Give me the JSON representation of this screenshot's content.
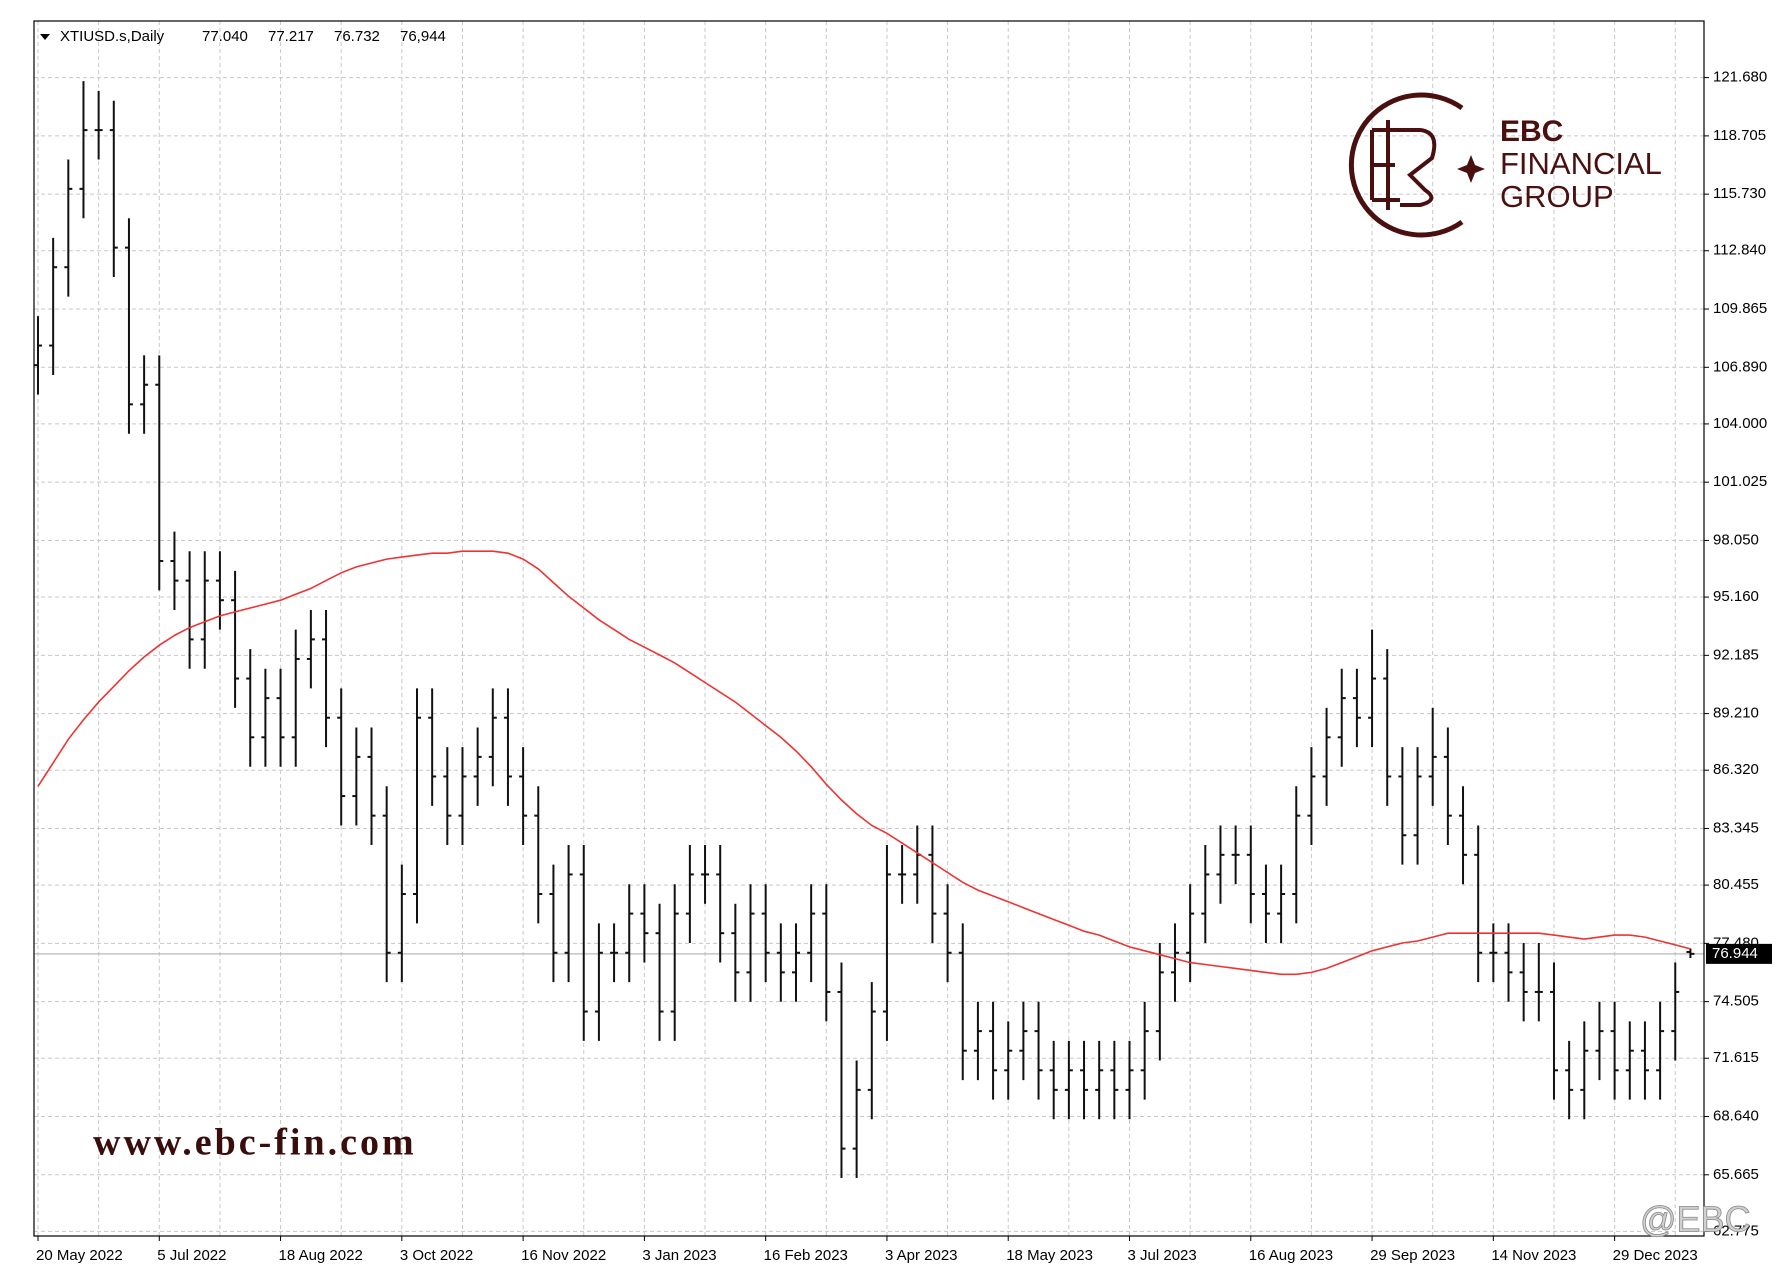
{
  "chart_data": {
    "type": "ohlc",
    "header": {
      "symbol": "XTIUSD.s,Daily",
      "quote": [
        {
          "value": 77.04,
          "label": "77.040"
        },
        {
          "value": 77.217,
          "label": "77.217"
        },
        {
          "value": 76.732,
          "label": "76.732"
        },
        {
          "value": 76.944,
          "label": "76,944"
        }
      ]
    },
    "categories": [
      "20 May 2022",
      null,
      null,
      null,
      null,
      null,
      null,
      null,
      "5 Jul 2022",
      null,
      null,
      null,
      null,
      null,
      null,
      null,
      "18 Aug 2022",
      null,
      null,
      null,
      null,
      null,
      null,
      null,
      "3 Oct 2022",
      null,
      null,
      null,
      null,
      null,
      null,
      null,
      "16 Nov 2022",
      null,
      null,
      null,
      null,
      null,
      null,
      null,
      "3 Jan 2023",
      null,
      null,
      null,
      null,
      null,
      null,
      null,
      "16 Feb 2023",
      null,
      null,
      null,
      null,
      null,
      null,
      null,
      "3 Apr 2023",
      null,
      null,
      null,
      null,
      null,
      null,
      null,
      "18 May 2023",
      null,
      null,
      null,
      null,
      null,
      null,
      null,
      "3 Jul 2023",
      null,
      null,
      null,
      null,
      null,
      null,
      null,
      "16 Aug 2023",
      null,
      null,
      null,
      null,
      null,
      null,
      null,
      "29 Sep 2023",
      null,
      null,
      null,
      null,
      null,
      null,
      null,
      "14 Nov 2023",
      null,
      null,
      null,
      null,
      null,
      null,
      null,
      "29 Dec 2023",
      null,
      null,
      null,
      null,
      null
    ],
    "ohlc": {
      "color": "#111111",
      "open": [
        107,
        108,
        112,
        116,
        119,
        119,
        113,
        105,
        106,
        97,
        96,
        93,
        96,
        95,
        91,
        88,
        90,
        88,
        92,
        93,
        89,
        85,
        87,
        84,
        77,
        80,
        89,
        86,
        84,
        86,
        87,
        89,
        86,
        84,
        80,
        77,
        81,
        74,
        77,
        77,
        79,
        78,
        74,
        79,
        81,
        81,
        78,
        76,
        79,
        77,
        76,
        77,
        79,
        75,
        67,
        70,
        74,
        81,
        81,
        82,
        79,
        77,
        72,
        73,
        71,
        72,
        73,
        71,
        70,
        71,
        70,
        71,
        70,
        71,
        73,
        76,
        77,
        79,
        81,
        82,
        82,
        80,
        79,
        80,
        84,
        86,
        88,
        90,
        89,
        91,
        86,
        83,
        86,
        87,
        84,
        82,
        77,
        77,
        76,
        75,
        75,
        71,
        70,
        72,
        73,
        71,
        72,
        71,
        73,
        77.04
      ],
      "high": [
        109.5,
        113.5,
        117.5,
        121.5,
        121,
        120.5,
        114.5,
        107.5,
        107.5,
        98.5,
        97.5,
        97.5,
        97.5,
        96.5,
        92.5,
        91.5,
        91.5,
        93.5,
        94.5,
        94.5,
        90.5,
        88.5,
        88.5,
        85.5,
        81.5,
        90.5,
        90.5,
        87.5,
        87.5,
        88.5,
        90.5,
        90.5,
        87.5,
        85.5,
        81.5,
        82.5,
        82.5,
        78.5,
        78.5,
        80.5,
        80.5,
        79.5,
        80.5,
        82.5,
        82.5,
        82.5,
        79.5,
        80.5,
        80.5,
        78.5,
        78.5,
        80.5,
        80.5,
        76.5,
        71.5,
        75.5,
        82.5,
        82.5,
        83.5,
        83.5,
        80.5,
        78.5,
        74.5,
        74.5,
        73.5,
        74.5,
        74.5,
        72.5,
        72.5,
        72.5,
        72.5,
        72.5,
        72.5,
        74.5,
        77.5,
        78.5,
        80.5,
        82.5,
        83.5,
        83.5,
        83.5,
        81.5,
        81.5,
        85.5,
        87.5,
        89.5,
        91.5,
        91.5,
        93.5,
        92.5,
        87.5,
        87.5,
        89.5,
        88.5,
        85.5,
        83.5,
        78.5,
        78.5,
        77.5,
        77.5,
        76.5,
        72.5,
        73.5,
        74.5,
        74.5,
        73.5,
        73.5,
        74.5,
        76.5,
        77.217
      ],
      "low": [
        105.5,
        106.5,
        110.5,
        114.5,
        117.5,
        111.5,
        103.5,
        103.5,
        95.5,
        94.5,
        91.5,
        91.5,
        93.5,
        89.5,
        86.5,
        86.5,
        86.5,
        86.5,
        90.5,
        87.5,
        83.5,
        83.5,
        82.5,
        75.5,
        75.5,
        78.5,
        84.5,
        82.5,
        82.5,
        84.5,
        85.5,
        84.5,
        82.5,
        78.5,
        75.5,
        75.5,
        72.5,
        72.5,
        75.5,
        75.5,
        76.5,
        72.5,
        72.5,
        77.5,
        79.5,
        76.5,
        74.5,
        74.5,
        75.5,
        74.5,
        74.5,
        75.5,
        73.5,
        65.5,
        65.5,
        68.5,
        72.5,
        79.5,
        79.5,
        77.5,
        75.5,
        70.5,
        70.5,
        69.5,
        69.5,
        70.5,
        69.5,
        68.5,
        68.5,
        68.5,
        68.5,
        68.5,
        68.5,
        69.5,
        71.5,
        74.5,
        75.5,
        77.5,
        79.5,
        80.5,
        78.5,
        77.5,
        77.5,
        78.5,
        82.5,
        84.5,
        86.5,
        87.5,
        87.5,
        84.5,
        81.5,
        81.5,
        84.5,
        82.5,
        80.5,
        75.5,
        75.5,
        74.5,
        73.5,
        73.5,
        69.5,
        68.5,
        68.5,
        70.5,
        69.5,
        69.5,
        69.5,
        69.5,
        71.5,
        76.732
      ],
      "close": [
        108,
        112,
        116,
        119,
        119,
        113,
        105,
        106,
        97,
        96,
        93,
        96,
        95,
        91,
        88,
        90,
        88,
        92,
        93,
        89,
        85,
        87,
        84,
        77,
        80,
        89,
        86,
        84,
        86,
        87,
        89,
        86,
        84,
        80,
        77,
        81,
        74,
        77,
        77,
        79,
        78,
        74,
        79,
        81,
        81,
        78,
        76,
        79,
        77,
        76,
        77,
        79,
        75,
        67,
        70,
        74,
        81,
        81,
        82,
        79,
        77,
        72,
        73,
        71,
        72,
        73,
        71,
        70,
        71,
        70,
        71,
        70,
        71,
        73,
        76,
        77,
        79,
        81,
        82,
        82,
        80,
        79,
        80,
        84,
        86,
        88,
        90,
        89,
        91,
        86,
        83,
        86,
        87,
        84,
        82,
        77,
        77,
        76,
        75,
        75,
        71,
        70,
        72,
        73,
        71,
        72,
        71,
        73,
        75,
        76.944
      ]
    },
    "moving_average": {
      "color": "#ee3333",
      "values": [
        85.5,
        86.7,
        87.9,
        88.9,
        89.8,
        90.6,
        91.4,
        92.1,
        92.7,
        93.2,
        93.6,
        93.9,
        94.2,
        94.4,
        94.6,
        94.8,
        95.0,
        95.3,
        95.6,
        96.0,
        96.4,
        96.7,
        96.9,
        97.1,
        97.2,
        97.3,
        97.4,
        97.4,
        97.5,
        97.5,
        97.5,
        97.4,
        97.1,
        96.6,
        95.9,
        95.2,
        94.6,
        94.0,
        93.5,
        93.0,
        92.6,
        92.2,
        91.8,
        91.3,
        90.8,
        90.3,
        89.8,
        89.2,
        88.6,
        88.0,
        87.3,
        86.5,
        85.6,
        84.8,
        84.1,
        83.5,
        83.1,
        82.6,
        82.1,
        81.6,
        81.1,
        80.6,
        80.2,
        79.9,
        79.6,
        79.3,
        79.0,
        78.7,
        78.4,
        78.1,
        77.9,
        77.6,
        77.3,
        77.1,
        76.9,
        76.7,
        76.5,
        76.4,
        76.3,
        76.2,
        76.1,
        76.0,
        75.9,
        75.9,
        76.0,
        76.2,
        76.5,
        76.8,
        77.1,
        77.3,
        77.5,
        77.6,
        77.8,
        78.0,
        78.0,
        78.0,
        78.0,
        78.0,
        78.0,
        78.0,
        77.9,
        77.8,
        77.7,
        77.8,
        77.9,
        77.9,
        77.8,
        77.6,
        77.4,
        77.2
      ]
    },
    "last_price": 76.944,
    "ylim": [
      62.54,
      124.57
    ],
    "yticks": [
      {
        "value": 121.68,
        "label": "121.680"
      },
      {
        "value": 118.705,
        "label": "118.705"
      },
      {
        "value": 115.73,
        "label": "115.730"
      },
      {
        "value": 112.84,
        "label": "112.840"
      },
      {
        "value": 109.865,
        "label": "109.865"
      },
      {
        "value": 106.89,
        "label": "106.890"
      },
      {
        "value": 104,
        "label": "104.000"
      },
      {
        "value": 101.025,
        "label": "101.025"
      },
      {
        "value": 98.05,
        "label": "98.050"
      },
      {
        "value": 95.16,
        "label": "95.160"
      },
      {
        "value": 92.185,
        "label": "92.185"
      },
      {
        "value": 89.21,
        "label": "89.210"
      },
      {
        "value": 86.32,
        "label": "86.320"
      },
      {
        "value": 83.345,
        "label": "83.345"
      },
      {
        "value": 80.455,
        "label": "80.455"
      },
      {
        "value": 77.48,
        "label": "77.480"
      },
      {
        "value": 74.505,
        "label": "74.505"
      },
      {
        "value": 71.615,
        "label": "71.615"
      },
      {
        "value": 68.64,
        "label": "68.640"
      },
      {
        "value": 65.665,
        "label": "65.665"
      },
      {
        "value": 62.775,
        "label": "62.775"
      }
    ],
    "grid": true
  },
  "watermark": "www.ebc-fin.com",
  "logo": {
    "line1": "EBC",
    "line2": "FINANCIAL",
    "line3": "GROUP"
  },
  "credit": "@EBC"
}
